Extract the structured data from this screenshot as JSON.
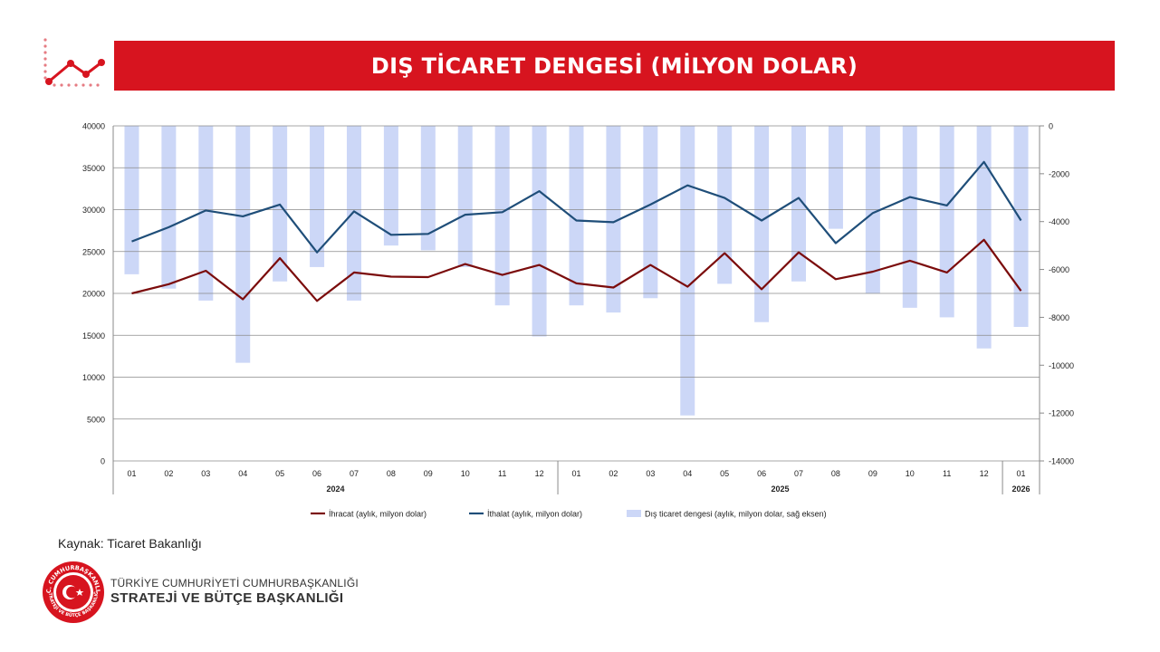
{
  "header": {
    "title": "DIŞ TİCARET DENGESİ (MİLYON DOLAR)"
  },
  "colors": {
    "brand_red": "#d7141f",
    "export_line": "#7b0c0c",
    "import_line": "#1f4e79",
    "balance_bar": "#ccd7f7"
  },
  "chart_data": {
    "type": "bar+line",
    "title": "DIŞ TİCARET DENGESİ (MİLYON DOLAR)",
    "categories": [
      "01",
      "02",
      "03",
      "04",
      "05",
      "06",
      "07",
      "08",
      "09",
      "10",
      "11",
      "12",
      "01",
      "02",
      "03",
      "04",
      "05",
      "06",
      "07",
      "08",
      "09",
      "10",
      "11",
      "12",
      "01"
    ],
    "year_groups": [
      {
        "label": "2024",
        "start": 0,
        "end": 11
      },
      {
        "label": "2025",
        "start": 12,
        "end": 23
      },
      {
        "label": "2026",
        "start": 24,
        "end": 24
      }
    ],
    "left_axis": {
      "min": 0,
      "max": 40000,
      "ticks": [
        "40000",
        "35000",
        "30000",
        "25000",
        "20000",
        "15000",
        "10000",
        "5000",
        "0"
      ]
    },
    "right_axis": {
      "min": -14000,
      "max": 0,
      "ticks": [
        "0",
        "-2000",
        "-4000",
        "-6000",
        "-8000",
        "-10000",
        "-12000",
        "-14000"
      ]
    },
    "series": [
      {
        "name": "İhracat (aylık, milyon dolar)",
        "type": "line",
        "axis": "left",
        "values": [
          20000,
          21100,
          22700,
          19300,
          24200,
          19100,
          22500,
          22000,
          21950,
          23500,
          22200,
          23400,
          21200,
          20700,
          23400,
          20800,
          24800,
          20500,
          24900,
          21700,
          22600,
          23900,
          22500,
          26400,
          20300
        ]
      },
      {
        "name": "İthalat (aylık, milyon dolar)",
        "type": "line",
        "axis": "left",
        "values": [
          26200,
          27900,
          29900,
          29200,
          30600,
          24900,
          29800,
          27000,
          27100,
          29400,
          29700,
          32200,
          28700,
          28500,
          30600,
          32900,
          31400,
          28700,
          31400,
          26000,
          29600,
          31500,
          30500,
          35700,
          28700
        ]
      },
      {
        "name": "Dış ticaret dengesi (aylık, milyon dolar, sağ eksen)",
        "type": "bar",
        "axis": "right",
        "values": [
          -6200,
          -6800,
          -7300,
          -9900,
          -6500,
          -5900,
          -7300,
          -5000,
          -5200,
          -5900,
          -7500,
          -8800,
          -7500,
          -7800,
          -7200,
          -12100,
          -6600,
          -8200,
          -6500,
          -4300,
          -7000,
          -7600,
          -8000,
          -9300,
          -8400
        ]
      }
    ],
    "legend_position": "bottom"
  },
  "footer": {
    "source": "Kaynak: Ticaret Bakanlığı",
    "org_line1": "TÜRKİYE CUMHURİYETİ CUMHURBAŞKANLIĞI",
    "org_line2": "STRATEJİ VE BÜTÇE BAŞKANLIĞI",
    "seal_top_text": "T.C. CUMHURBAŞKANLIĞI",
    "seal_bottom_text": "STRATEJİ VE BÜTÇE BAŞKANLIĞI"
  }
}
